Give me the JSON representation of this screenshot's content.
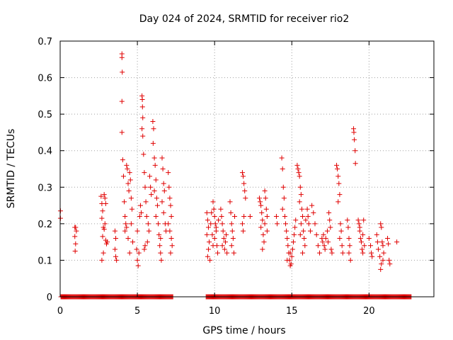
{
  "chart_data": {
    "type": "scatter",
    "title": "Day 024 of 2024, SRMTID for receiver rio2",
    "xlabel": "GPS time / hours",
    "ylabel": "SRMTID / TECUs",
    "xlim": [
      0,
      24.2
    ],
    "ylim": [
      0,
      0.7
    ],
    "grid": true,
    "marker": "plus",
    "color": "#e00000",
    "x_ticks": [
      0,
      5,
      10,
      15,
      20
    ],
    "x_tick_labels": [
      "0",
      "5",
      "10",
      "15",
      "20"
    ],
    "y_ticks": [
      0,
      0.1,
      0.2,
      0.3,
      0.4,
      0.5,
      0.6,
      0.7
    ],
    "y_tick_labels": [
      "0",
      "0.1",
      "0.2",
      "0.3",
      "0.4",
      "0.5",
      "0.6",
      "0.7"
    ],
    "series": [
      {
        "name": "SRMTID rio2",
        "zero_baseline_ranges": [
          [
            0.05,
            7.3
          ],
          [
            9.45,
            22.75
          ]
        ],
        "points": [
          [
            0.02,
            0.235
          ],
          [
            0.02,
            0.215
          ],
          [
            0.95,
            0.19
          ],
          [
            0.95,
            0.165
          ],
          [
            1.0,
            0.145
          ],
          [
            0.97,
            0.125
          ],
          [
            1.05,
            0.18
          ],
          [
            1.0,
            0.19
          ],
          [
            2.65,
            0.275
          ],
          [
            2.7,
            0.255
          ],
          [
            2.75,
            0.235
          ],
          [
            2.7,
            0.215
          ],
          [
            2.8,
            0.19
          ],
          [
            2.85,
            0.28
          ],
          [
            2.9,
            0.27
          ],
          [
            2.95,
            0.255
          ],
          [
            2.75,
            0.165
          ],
          [
            2.8,
            0.12
          ],
          [
            2.7,
            0.1
          ],
          [
            2.95,
            0.155
          ],
          [
            3.0,
            0.145
          ],
          [
            2.9,
            0.2
          ],
          [
            3.05,
            0.15
          ],
          [
            2.85,
            0.185
          ],
          [
            3.55,
            0.18
          ],
          [
            3.6,
            0.16
          ],
          [
            3.55,
            0.13
          ],
          [
            3.6,
            0.11
          ],
          [
            3.65,
            0.1
          ],
          [
            4.0,
            0.665
          ],
          [
            4.0,
            0.655
          ],
          [
            4.02,
            0.615
          ],
          [
            4.0,
            0.535
          ],
          [
            4.0,
            0.45
          ],
          [
            4.05,
            0.375
          ],
          [
            4.1,
            0.33
          ],
          [
            4.15,
            0.26
          ],
          [
            4.2,
            0.22
          ],
          [
            4.25,
            0.2
          ],
          [
            4.3,
            0.36
          ],
          [
            4.35,
            0.35
          ],
          [
            4.4,
            0.31
          ],
          [
            4.45,
            0.29
          ],
          [
            4.5,
            0.34
          ],
          [
            4.55,
            0.32
          ],
          [
            4.6,
            0.27
          ],
          [
            4.4,
            0.16
          ],
          [
            4.5,
            0.12
          ],
          [
            4.6,
            0.2
          ],
          [
            4.7,
            0.15
          ],
          [
            4.3,
            0.19
          ],
          [
            4.2,
            0.18
          ],
          [
            4.65,
            0.24
          ],
          [
            4.95,
            0.13
          ],
          [
            5.0,
            0.1
          ],
          [
            5.05,
            0.085
          ],
          [
            5.1,
            0.12
          ],
          [
            5.0,
            0.18
          ],
          [
            5.15,
            0.22
          ],
          [
            5.2,
            0.25
          ],
          [
            5.25,
            0.23
          ],
          [
            5.3,
            0.55
          ],
          [
            5.32,
            0.54
          ],
          [
            5.33,
            0.52
          ],
          [
            5.35,
            0.49
          ],
          [
            5.3,
            0.46
          ],
          [
            5.35,
            0.44
          ],
          [
            5.4,
            0.39
          ],
          [
            5.45,
            0.34
          ],
          [
            5.5,
            0.3
          ],
          [
            5.55,
            0.26
          ],
          [
            5.6,
            0.22
          ],
          [
            5.5,
            0.14
          ],
          [
            5.45,
            0.13
          ],
          [
            5.7,
            0.2
          ],
          [
            5.75,
            0.18
          ],
          [
            5.8,
            0.33
          ],
          [
            5.85,
            0.3
          ],
          [
            5.9,
            0.28
          ],
          [
            5.65,
            0.15
          ],
          [
            6.0,
            0.48
          ],
          [
            6.05,
            0.46
          ],
          [
            6.02,
            0.42
          ],
          [
            6.1,
            0.38
          ],
          [
            6.15,
            0.36
          ],
          [
            6.2,
            0.32
          ],
          [
            6.1,
            0.29
          ],
          [
            6.25,
            0.27
          ],
          [
            6.3,
            0.25
          ],
          [
            6.2,
            0.22
          ],
          [
            6.35,
            0.2
          ],
          [
            6.4,
            0.17
          ],
          [
            6.45,
            0.14
          ],
          [
            6.5,
            0.12
          ],
          [
            6.55,
            0.1
          ],
          [
            6.6,
            0.38
          ],
          [
            6.65,
            0.35
          ],
          [
            6.7,
            0.31
          ],
          [
            6.75,
            0.29
          ],
          [
            6.6,
            0.26
          ],
          [
            6.7,
            0.23
          ],
          [
            6.8,
            0.2
          ],
          [
            6.85,
            0.18
          ],
          [
            6.5,
            0.16
          ],
          [
            7.0,
            0.34
          ],
          [
            7.05,
            0.3
          ],
          [
            7.1,
            0.27
          ],
          [
            7.15,
            0.25
          ],
          [
            7.2,
            0.22
          ],
          [
            7.0,
            0.2
          ],
          [
            7.1,
            0.18
          ],
          [
            7.2,
            0.16
          ],
          [
            7.25,
            0.14
          ],
          [
            7.15,
            0.12
          ],
          [
            9.5,
            0.23
          ],
          [
            9.55,
            0.21
          ],
          [
            9.6,
            0.19
          ],
          [
            9.5,
            0.17
          ],
          [
            9.65,
            0.15
          ],
          [
            9.6,
            0.13
          ],
          [
            9.55,
            0.11
          ],
          [
            9.7,
            0.1
          ],
          [
            9.75,
            0.2
          ],
          [
            9.8,
            0.23
          ],
          [
            9.9,
            0.26
          ],
          [
            9.95,
            0.24
          ],
          [
            10.0,
            0.22
          ],
          [
            10.05,
            0.2
          ],
          [
            10.1,
            0.18
          ],
          [
            10.0,
            0.16
          ],
          [
            10.15,
            0.14
          ],
          [
            10.2,
            0.12
          ],
          [
            10.1,
            0.19
          ],
          [
            10.25,
            0.21
          ],
          [
            9.85,
            0.17
          ],
          [
            9.9,
            0.14
          ],
          [
            10.4,
            0.24
          ],
          [
            10.45,
            0.22
          ],
          [
            10.5,
            0.2
          ],
          [
            10.55,
            0.18
          ],
          [
            10.6,
            0.16
          ],
          [
            10.5,
            0.14
          ],
          [
            10.65,
            0.13
          ],
          [
            10.7,
            0.15
          ],
          [
            10.75,
            0.17
          ],
          [
            10.8,
            0.12
          ],
          [
            11.0,
            0.26
          ],
          [
            11.05,
            0.23
          ],
          [
            11.1,
            0.2
          ],
          [
            11.15,
            0.18
          ],
          [
            11.2,
            0.16
          ],
          [
            11.1,
            0.14
          ],
          [
            11.25,
            0.12
          ],
          [
            11.3,
            0.22
          ],
          [
            11.8,
            0.34
          ],
          [
            11.85,
            0.33
          ],
          [
            11.9,
            0.31
          ],
          [
            11.95,
            0.29
          ],
          [
            12.0,
            0.27
          ],
          [
            11.8,
            0.2
          ],
          [
            11.85,
            0.18
          ],
          [
            11.9,
            0.22
          ],
          [
            12.3,
            0.22
          ],
          [
            12.9,
            0.27
          ],
          [
            12.95,
            0.26
          ],
          [
            13.0,
            0.25
          ],
          [
            13.05,
            0.23
          ],
          [
            13.1,
            0.21
          ],
          [
            13.0,
            0.19
          ],
          [
            13.15,
            0.17
          ],
          [
            13.2,
            0.15
          ],
          [
            13.1,
            0.13
          ],
          [
            13.25,
            0.29
          ],
          [
            13.3,
            0.27
          ],
          [
            13.35,
            0.24
          ],
          [
            13.4,
            0.22
          ],
          [
            13.25,
            0.2
          ],
          [
            13.4,
            0.18
          ],
          [
            14.0,
            0.22
          ],
          [
            14.05,
            0.2
          ],
          [
            14.35,
            0.38
          ],
          [
            14.4,
            0.35
          ],
          [
            14.45,
            0.3
          ],
          [
            14.5,
            0.27
          ],
          [
            14.4,
            0.24
          ],
          [
            14.55,
            0.22
          ],
          [
            14.6,
            0.2
          ],
          [
            14.65,
            0.18
          ],
          [
            14.7,
            0.16
          ],
          [
            14.75,
            0.14
          ],
          [
            14.8,
            0.12
          ],
          [
            14.85,
            0.1
          ],
          [
            14.9,
            0.085
          ],
          [
            14.95,
            0.09
          ],
          [
            15.0,
            0.11
          ],
          [
            15.05,
            0.13
          ],
          [
            15.1,
            0.15
          ],
          [
            15.15,
            0.17
          ],
          [
            15.2,
            0.19
          ],
          [
            15.25,
            0.21
          ],
          [
            14.7,
            0.1
          ],
          [
            14.9,
            0.12
          ],
          [
            15.35,
            0.36
          ],
          [
            15.4,
            0.35
          ],
          [
            15.45,
            0.34
          ],
          [
            15.5,
            0.33
          ],
          [
            15.55,
            0.3
          ],
          [
            15.6,
            0.28
          ],
          [
            15.5,
            0.26
          ],
          [
            15.65,
            0.24
          ],
          [
            15.7,
            0.22
          ],
          [
            15.6,
            0.2
          ],
          [
            15.75,
            0.18
          ],
          [
            15.8,
            0.16
          ],
          [
            15.85,
            0.14
          ],
          [
            15.7,
            0.12
          ],
          [
            15.55,
            0.17
          ],
          [
            15.9,
            0.21
          ],
          [
            16.0,
            0.24
          ],
          [
            16.05,
            0.22
          ],
          [
            16.1,
            0.2
          ],
          [
            16.2,
            0.18
          ],
          [
            16.3,
            0.25
          ],
          [
            16.4,
            0.23
          ],
          [
            16.5,
            0.2
          ],
          [
            16.6,
            0.17
          ],
          [
            16.7,
            0.14
          ],
          [
            16.8,
            0.12
          ],
          [
            16.95,
            0.16
          ],
          [
            17.0,
            0.15
          ],
          [
            17.05,
            0.17
          ],
          [
            17.1,
            0.14
          ],
          [
            17.15,
            0.13
          ],
          [
            17.2,
            0.16
          ],
          [
            17.3,
            0.18
          ],
          [
            17.35,
            0.15
          ],
          [
            17.4,
            0.23
          ],
          [
            17.45,
            0.21
          ],
          [
            17.5,
            0.19
          ],
          [
            17.55,
            0.13
          ],
          [
            17.6,
            0.12
          ],
          [
            17.9,
            0.36
          ],
          [
            17.95,
            0.35
          ],
          [
            18.0,
            0.33
          ],
          [
            18.05,
            0.31
          ],
          [
            18.1,
            0.28
          ],
          [
            18.0,
            0.26
          ],
          [
            18.15,
            0.2
          ],
          [
            18.2,
            0.18
          ],
          [
            18.1,
            0.16
          ],
          [
            18.25,
            0.14
          ],
          [
            18.3,
            0.12
          ],
          [
            18.6,
            0.21
          ],
          [
            18.65,
            0.19
          ],
          [
            18.7,
            0.16
          ],
          [
            18.75,
            0.14
          ],
          [
            18.7,
            0.12
          ],
          [
            18.8,
            0.1
          ],
          [
            19.0,
            0.46
          ],
          [
            19.02,
            0.45
          ],
          [
            19.05,
            0.43
          ],
          [
            19.1,
            0.4
          ],
          [
            19.12,
            0.365
          ],
          [
            19.3,
            0.21
          ],
          [
            19.35,
            0.2
          ],
          [
            19.4,
            0.18
          ],
          [
            19.45,
            0.16
          ],
          [
            19.5,
            0.15
          ],
          [
            19.55,
            0.13
          ],
          [
            19.6,
            0.12
          ],
          [
            19.4,
            0.19
          ],
          [
            19.6,
            0.17
          ],
          [
            19.65,
            0.21
          ],
          [
            19.7,
            0.14
          ],
          [
            20.0,
            0.16
          ],
          [
            20.1,
            0.14
          ],
          [
            20.15,
            0.12
          ],
          [
            20.2,
            0.11
          ],
          [
            20.5,
            0.17
          ],
          [
            20.55,
            0.15
          ],
          [
            20.6,
            0.13
          ],
          [
            20.7,
            0.11
          ],
          [
            20.75,
            0.2
          ],
          [
            20.8,
            0.19
          ],
          [
            20.85,
            0.15
          ],
          [
            20.9,
            0.14
          ],
          [
            20.95,
            0.12
          ],
          [
            20.8,
            0.09
          ],
          [
            20.75,
            0.075
          ],
          [
            20.9,
            0.1
          ],
          [
            21.2,
            0.16
          ],
          [
            21.25,
            0.145
          ],
          [
            21.3,
            0.1
          ],
          [
            21.35,
            0.09
          ],
          [
            21.8,
            0.15
          ]
        ]
      }
    ]
  }
}
